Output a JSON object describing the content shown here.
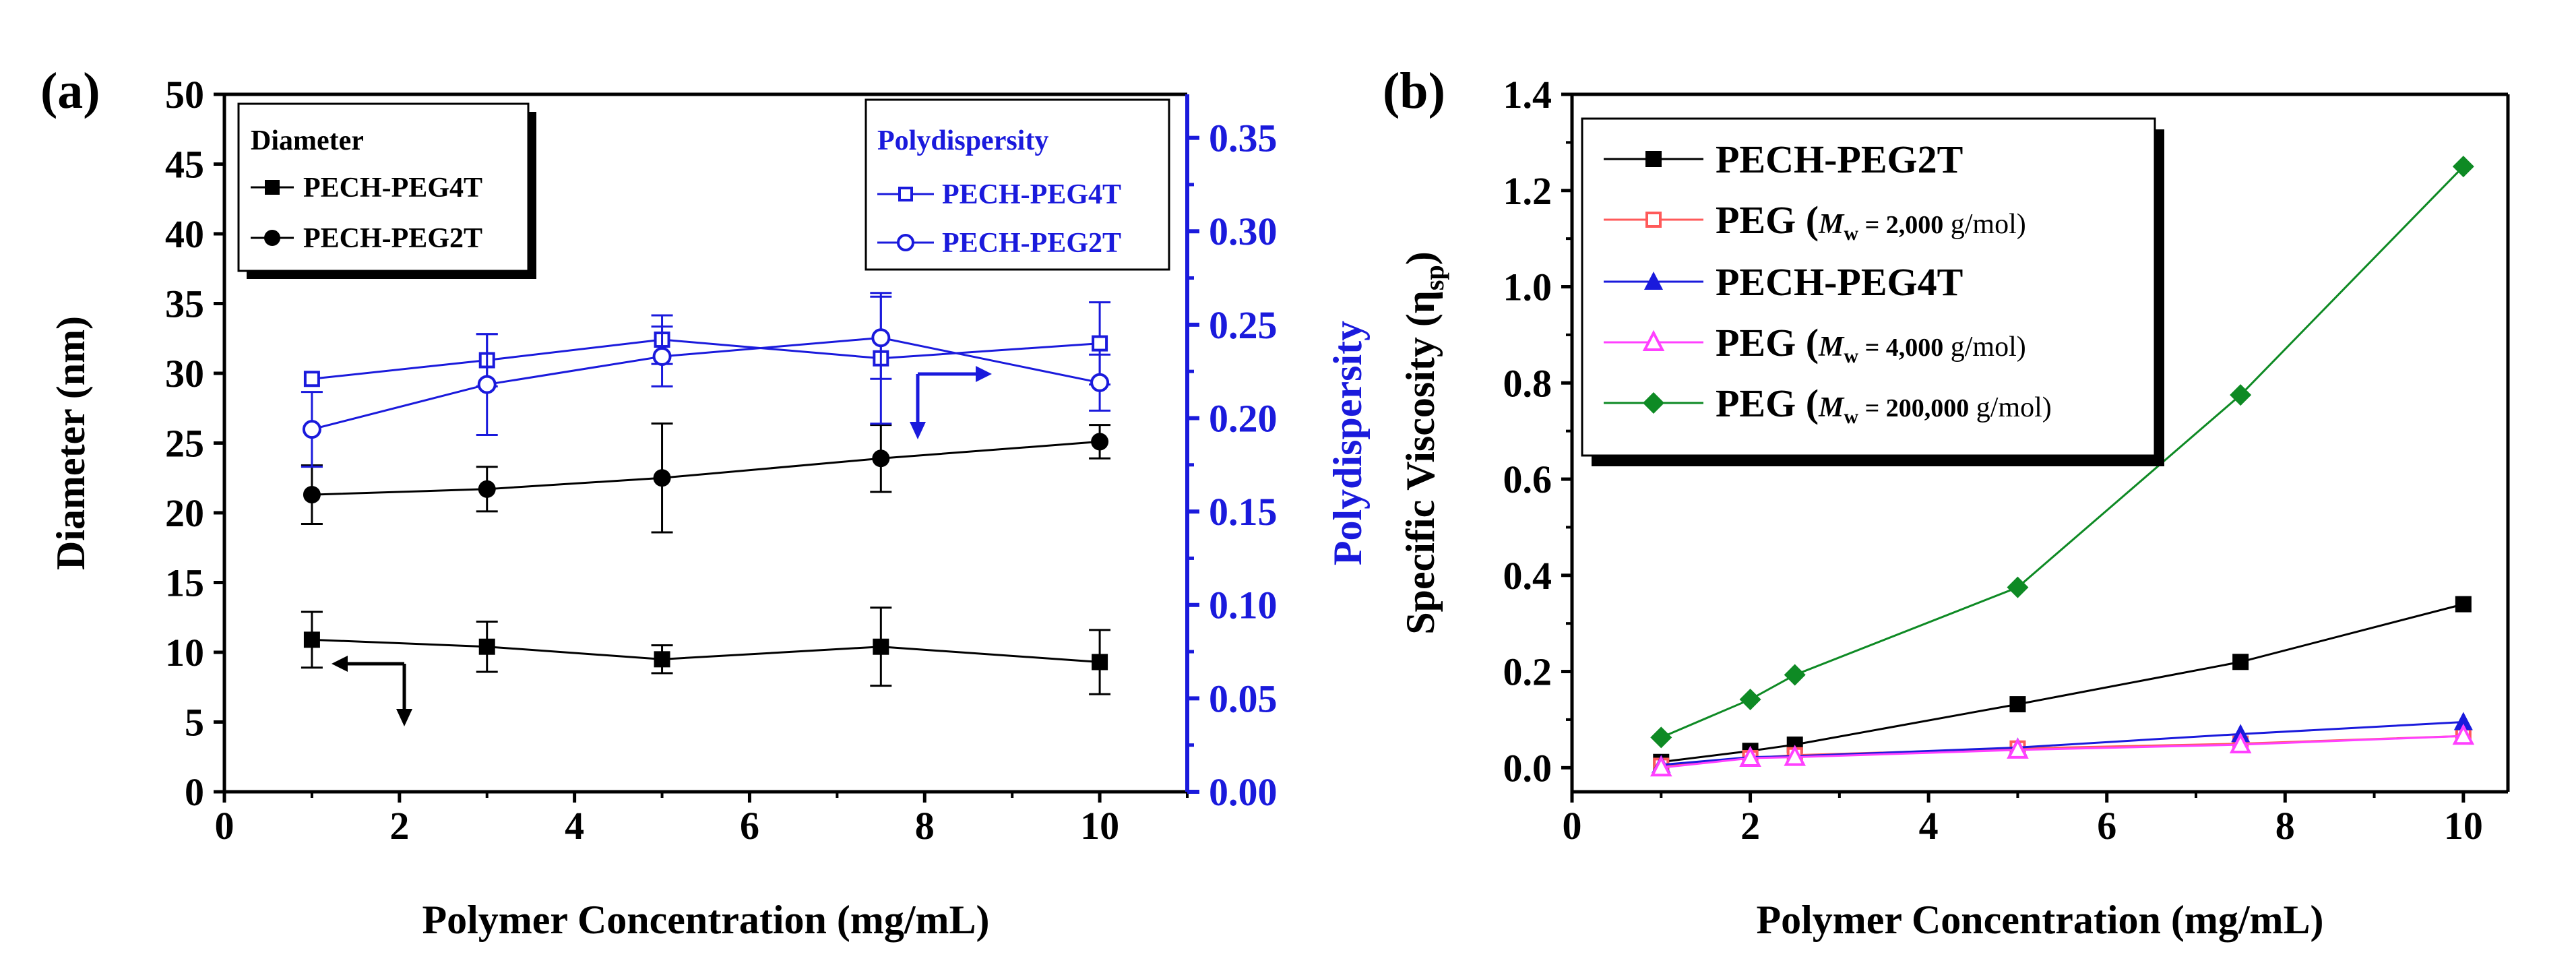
{
  "chart_data": [
    {
      "panel": "(a)",
      "type": "line",
      "xlabel": "Polymer Concentration (mg/mL)",
      "xlim": [
        0,
        11
      ],
      "xticks": [
        0,
        2,
        4,
        6,
        8,
        10
      ],
      "ylabel": "Diameter (nm)",
      "ylim": [
        0,
        50
      ],
      "yticks": [
        0,
        5,
        10,
        15,
        20,
        25,
        30,
        35,
        40,
        45,
        50
      ],
      "y2label": "Polydispersity",
      "y2lim": [
        0,
        0.3733
      ],
      "y2ticks": [
        "0.00",
        "0.05",
        "0.10",
        "0.15",
        "0.20",
        "0.25",
        "0.30",
        "0.35"
      ],
      "left_legend": {
        "title": "Diameter",
        "position": "top-left"
      },
      "right_legend": {
        "title": "Polydispersity",
        "position": "top-right"
      },
      "series": [
        {
          "name": "PECH-PEG4T",
          "axis": "left",
          "color": "#000000",
          "marker": "square-filled",
          "x": [
            1,
            3,
            5,
            7.5,
            10
          ],
          "y": [
            10.9,
            10.4,
            9.5,
            10.4,
            9.3
          ],
          "err": [
            2.0,
            1.8,
            1.0,
            2.8,
            2.3
          ]
        },
        {
          "name": "PECH-PEG2T",
          "axis": "left",
          "color": "#000000",
          "marker": "circle-filled",
          "x": [
            1,
            3,
            5,
            7.5,
            10
          ],
          "y": [
            21.3,
            21.7,
            22.5,
            23.9,
            25.1
          ],
          "err": [
            2.1,
            1.6,
            3.9,
            2.4,
            1.2
          ]
        },
        {
          "name": "PECH-PEG4T",
          "axis": "right",
          "color": "#1a1adc",
          "marker": "square-open",
          "x": [
            1,
            3,
            5,
            7.5,
            10
          ],
          "y": [
            0.221,
            0.231,
            0.242,
            0.232,
            0.24
          ],
          "err": [
            0.0,
            0.014,
            0.013,
            0.035,
            0.022
          ]
        },
        {
          "name": "PECH-PEG2T",
          "axis": "right",
          "color": "#1a1adc",
          "marker": "circle-open",
          "x": [
            1,
            3,
            5,
            7.5,
            10
          ],
          "y": [
            0.194,
            0.218,
            0.233,
            0.243,
            0.219
          ],
          "err": [
            0.02,
            0.027,
            0.016,
            0.022,
            0.015
          ]
        }
      ]
    },
    {
      "panel": "(b)",
      "type": "line",
      "xlabel": "Polymer Concentration (mg/mL)",
      "xlim": [
        0,
        10.5
      ],
      "xticks": [
        0,
        2,
        4,
        6,
        8,
        10
      ],
      "ylabel": "Specific Viscosity (η",
      "ylabel_sub": "sp",
      "ylabel_close": ")",
      "ylim": [
        -0.05,
        1.4
      ],
      "yticks": [
        "0.0",
        "0.2",
        "0.4",
        "0.6",
        "0.8",
        "1.0",
        "1.2",
        "1.4"
      ],
      "legend_position": "top-left",
      "series": [
        {
          "name": "PECH-PEG2T",
          "label_parts": [
            [
              "PECH-PEG2T",
              "big"
            ]
          ],
          "color": "#000000",
          "marker": "square-filled",
          "x": [
            1,
            2,
            2.5,
            5,
            7.5,
            10
          ],
          "y": [
            0.012,
            0.035,
            0.048,
            0.132,
            0.22,
            0.34
          ]
        },
        {
          "name": "PEG (Mw = 2,000 g/mol)",
          "label_parts": [
            [
              "PEG (",
              "big"
            ],
            [
              "M",
              "it"
            ],
            [
              "w",
              "sub"
            ],
            [
              " = 2,000",
              "bold"
            ],
            [
              " g/mol)",
              "norm"
            ]
          ],
          "color": "#ff5a5a",
          "marker": "square-open",
          "x": [
            1,
            2,
            2.5,
            5,
            7.5,
            10
          ],
          "y": [
            0.004,
            0.02,
            0.026,
            0.04,
            0.05,
            0.066
          ]
        },
        {
          "name": "PECH-PEG4T",
          "label_parts": [
            [
              "PECH-PEG4T",
              "big"
            ]
          ],
          "color": "#1a1adc",
          "marker": "triangle-filled",
          "x": [
            1,
            2,
            2.5,
            5,
            7.5,
            10
          ],
          "y": [
            0.006,
            0.022,
            0.024,
            0.042,
            0.07,
            0.095
          ]
        },
        {
          "name": "PEG (Mw = 4,000 g/mol)",
          "label_parts": [
            [
              "PEG (",
              "big"
            ],
            [
              "M",
              "it"
            ],
            [
              "w",
              "sub"
            ],
            [
              " = 4,000",
              "bold"
            ],
            [
              " g/mol)",
              "norm"
            ]
          ],
          "color": "#ff40ff",
          "marker": "triangle-open",
          "x": [
            1,
            2,
            2.5,
            5,
            7.5,
            10
          ],
          "y": [
            0.0,
            0.02,
            0.022,
            0.037,
            0.048,
            0.066
          ]
        },
        {
          "name": "PEG (Mw = 200,000 g/mol)",
          "label_parts": [
            [
              "PEG (",
              "big"
            ],
            [
              "M",
              "it"
            ],
            [
              "w",
              "sub"
            ],
            [
              " = 200,000",
              "bold"
            ],
            [
              " g/mol)",
              "norm"
            ]
          ],
          "color": "#0e8a24",
          "marker": "diamond-filled",
          "x": [
            1,
            2,
            2.5,
            5,
            7.5,
            10
          ],
          "y": [
            0.063,
            0.142,
            0.193,
            0.375,
            0.775,
            1.25
          ]
        }
      ]
    }
  ]
}
